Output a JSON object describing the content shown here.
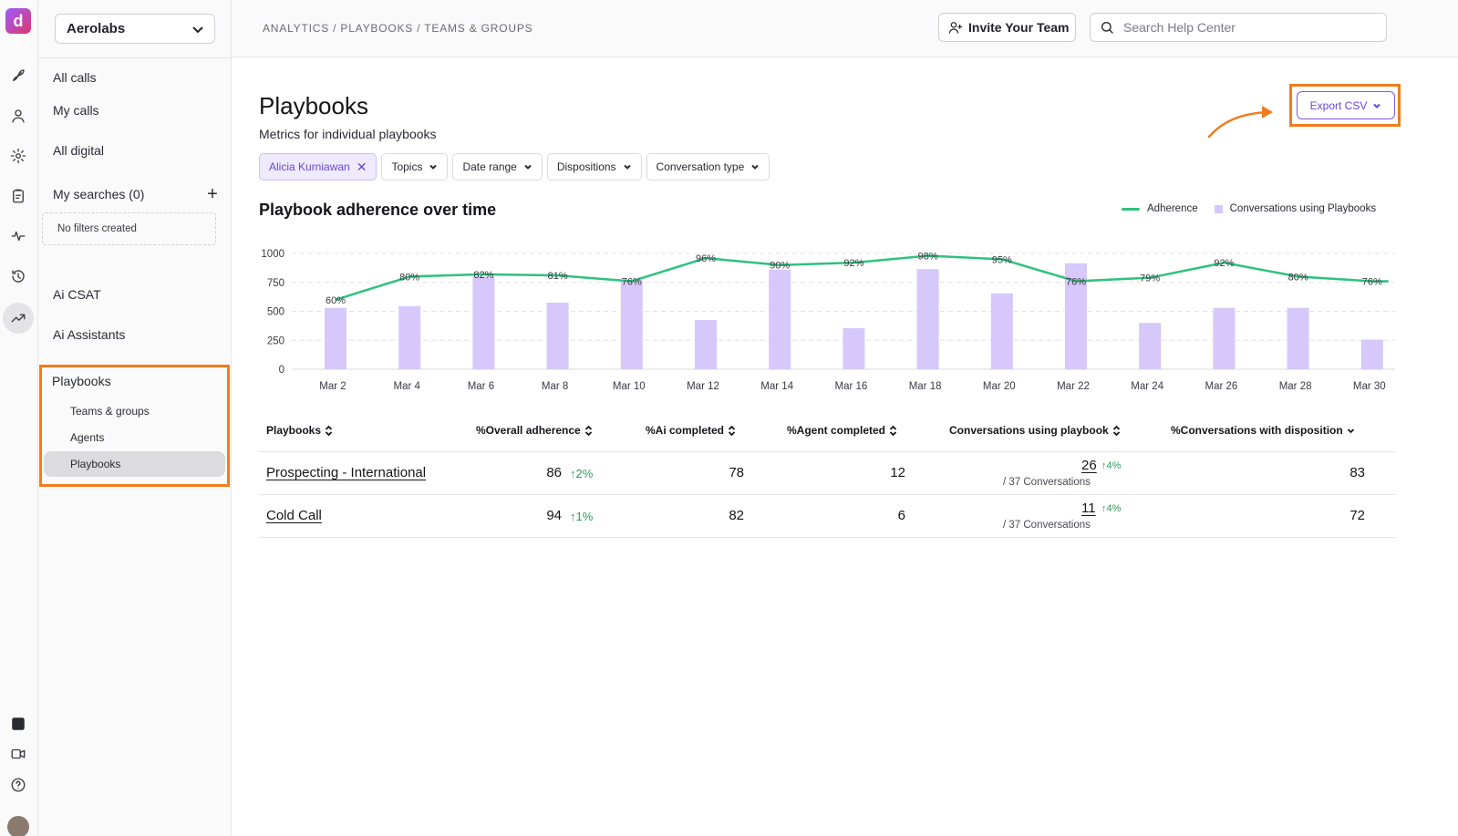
{
  "app": {
    "logo_letter": "d",
    "workspace": "Aerolabs"
  },
  "breadcrumb": "ANALYTICS / PLAYBOOKS / TEAMS & GROUPS",
  "header": {
    "invite_label": "Invite Your Team",
    "search_placeholder": "Search Help Center"
  },
  "rail_icons": [
    "rocket-icon",
    "user-icon",
    "gear-icon",
    "clipboard-icon",
    "pulse-icon",
    "history-icon",
    "trending-icon",
    "brand-icon",
    "video-icon",
    "help-icon"
  ],
  "sidebar": {
    "all_calls": "All calls",
    "my_calls": "My calls",
    "all_digital": "All digital",
    "my_searches": "My searches (0)",
    "no_filters": "No filters created",
    "ai_csat": "Ai CSAT",
    "ai_assistants": "Ai Assistants",
    "playbooks": "Playbooks",
    "sub_items": [
      "Teams & groups",
      "Agents",
      "Playbooks"
    ],
    "active_sub": "Playbooks"
  },
  "page": {
    "title": "Playbooks",
    "subtitle": "Metrics for individual playbooks",
    "export_label": "Export CSV"
  },
  "filters": {
    "selected": "Alicia Kurniawan",
    "chips": [
      "Topics",
      "Date range",
      "Dispositions",
      "Conversation type"
    ]
  },
  "colors": {
    "accent": "#6a44d9",
    "highlight": "#f07c1e",
    "adherence": "#2ec27e",
    "bars": "#d6c8fa",
    "positive": "#2a9d57"
  },
  "chart_data": {
    "type": "bar",
    "title": "Playbook adherence over time",
    "categories": [
      "Mar 2",
      "Mar 4",
      "Mar 6",
      "Mar 8",
      "Mar 10",
      "Mar 12",
      "Mar 14",
      "Mar 16",
      "Mar 18",
      "Mar 20",
      "Mar 22",
      "Mar 24",
      "Mar 26",
      "Mar 28",
      "Mar 30"
    ],
    "ylim": [
      0,
      1000
    ],
    "yticks": [
      0,
      250,
      500,
      750,
      1000
    ],
    "grid": true,
    "legend_position": "top-right",
    "series": [
      {
        "name": "Conversations using Playbooks",
        "kind": "bar",
        "values": [
          530,
          545,
          800,
          575,
          770,
          425,
          860,
          355,
          865,
          655,
          915,
          400,
          530,
          530,
          255
        ]
      },
      {
        "name": "Adherence",
        "kind": "line",
        "values": [
          60,
          80,
          82,
          81,
          76,
          96,
          90,
          92,
          98,
          95,
          76,
          79,
          92,
          80,
          76
        ],
        "labels": [
          "60%",
          "80%",
          "82%",
          "81%",
          "76%",
          "96%",
          "90%",
          "92%",
          "98%",
          "95%",
          "76%",
          "79%",
          "92%",
          "80%",
          "76%"
        ]
      }
    ]
  },
  "table": {
    "headers": [
      "Playbooks",
      "%Overall adherence",
      "%Ai completed",
      "%Agent completed",
      "Conversations using playbook",
      "%Conversations with disposition"
    ],
    "rows": [
      {
        "name": "Prospecting - International",
        "adherence": "86",
        "adherence_delta": "2%",
        "ai": "78",
        "agent": "12",
        "conv": "26",
        "conv_delta": "4%",
        "conv_sub": "/ 37 Conversations",
        "disposition": "83"
      },
      {
        "name": "Cold Call",
        "adherence": "94",
        "adherence_delta": "1%",
        "ai": "82",
        "agent": "6",
        "conv": "11",
        "conv_delta": "4%",
        "conv_sub": "/ 37 Conversations",
        "disposition": "72"
      }
    ]
  }
}
